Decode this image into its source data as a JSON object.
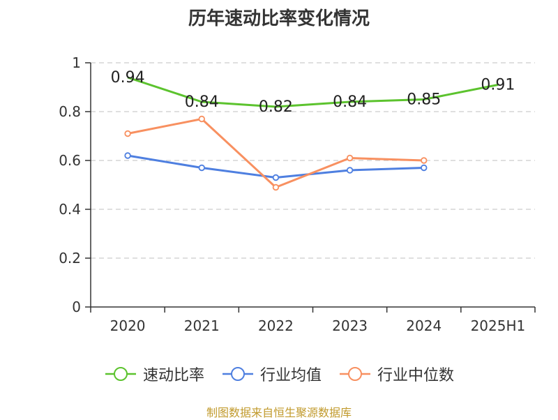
{
  "title": "历年速动比率变化情况",
  "source_note": "制图数据来自恒生聚源数据库",
  "colors": {
    "axis": "#333333",
    "grid": "#cccccc"
  },
  "chart_data": {
    "type": "line",
    "categories": [
      "2020",
      "2021",
      "2022",
      "2023",
      "2024",
      "2025H1"
    ],
    "ylim": [
      0,
      1
    ],
    "yticks": [
      0,
      0.2,
      0.4,
      0.6,
      0.8,
      1
    ],
    "ytick_labels": [
      "0",
      "0.2",
      "0.4",
      "0.6",
      "0.8",
      "1"
    ],
    "grid": true,
    "legend_position": "bottom",
    "series": [
      {
        "name": "速动比率",
        "color": "#5cc32e",
        "values": [
          0.94,
          0.84,
          0.82,
          0.84,
          0.85,
          0.91
        ],
        "labels": [
          "0.94",
          "0.84",
          "0.82",
          "0.84",
          "0.85",
          "0.91"
        ],
        "show_markers": false
      },
      {
        "name": "行业均值",
        "color": "#4e7fe0",
        "values": [
          0.62,
          0.57,
          0.53,
          0.56,
          0.57,
          null
        ],
        "show_markers": true
      },
      {
        "name": "行业中位数",
        "color": "#f89060",
        "values": [
          0.71,
          0.77,
          0.49,
          0.61,
          0.6,
          null
        ],
        "show_markers": true
      }
    ]
  }
}
